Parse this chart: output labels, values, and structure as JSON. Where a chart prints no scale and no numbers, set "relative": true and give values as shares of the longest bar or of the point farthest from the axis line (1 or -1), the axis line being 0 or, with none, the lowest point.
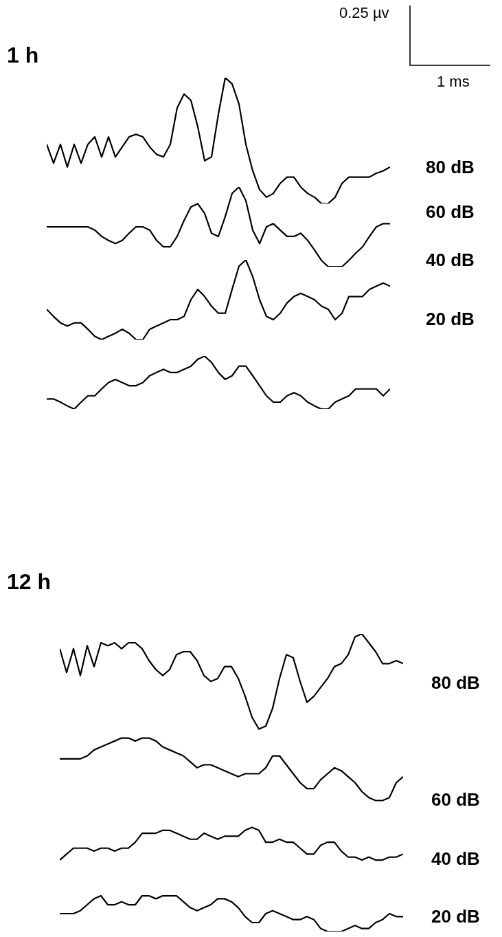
{
  "chart_data": [
    {
      "type": "line",
      "title": "1 h",
      "relative": true,
      "annotations": [
        "0.25 µv",
        "1 ms"
      ],
      "categories": [
        null,
        null,
        null,
        null,
        null,
        null,
        null,
        null,
        null,
        null,
        null,
        null,
        null,
        null,
        null,
        null,
        null,
        null,
        null,
        null,
        null,
        null,
        null,
        null,
        null,
        null,
        null,
        null,
        null,
        null,
        null,
        null,
        null,
        null,
        null,
        null,
        null,
        null,
        null,
        null,
        null,
        null,
        null,
        null,
        null,
        null,
        null,
        null,
        null,
        null,
        null
      ],
      "series": [
        {
          "name": "80 dB",
          "color": "#000000",
          "values": [
            0.47,
            0.32,
            0.47,
            0.29,
            0.47,
            0.32,
            0.47,
            0.53,
            0.37,
            0.53,
            0.37,
            0.45,
            0.53,
            0.55,
            0.53,
            0.45,
            0.39,
            0.37,
            0.47,
            0.76,
            0.87,
            0.82,
            0.61,
            0.34,
            0.37,
            0.71,
            1,
            0.95,
            0.79,
            0.47,
            0.26,
            0.11,
            0.05,
            0.08,
            0.16,
            0.21,
            0.21,
            0.13,
            0.08,
            0.05,
            0,
            0,
            0.05,
            0.16,
            0.21,
            0.21,
            0.21,
            0.21,
            0.24,
            0.26,
            0.29
          ]
        }
      ]
    },
    {
      "type": "line",
      "relative": true,
      "categories": [
        null,
        null,
        null,
        null,
        null,
        null,
        null,
        null,
        null,
        null,
        null,
        null,
        null,
        null,
        null,
        null,
        null,
        null,
        null,
        null,
        null,
        null,
        null,
        null,
        null,
        null,
        null,
        null,
        null,
        null,
        null,
        null,
        null,
        null,
        null,
        null,
        null,
        null,
        null,
        null,
        null,
        null,
        null,
        null,
        null,
        null,
        null,
        null,
        null,
        null,
        null
      ],
      "series": [
        {
          "name": "60 dB",
          "color": "#000000",
          "values": [
            0.5,
            0.5,
            0.5,
            0.5,
            0.5,
            0.5,
            0.5,
            0.46,
            0.38,
            0.33,
            0.29,
            0.33,
            0.42,
            0.5,
            0.5,
            0.46,
            0.33,
            0.25,
            0.25,
            0.38,
            0.58,
            0.75,
            0.79,
            0.67,
            0.42,
            0.38,
            0.63,
            0.92,
            1,
            0.83,
            0.46,
            0.29,
            0.5,
            0.54,
            0.46,
            0.38,
            0.38,
            0.42,
            0.33,
            0.21,
            0.08,
            0,
            0,
            0,
            0.08,
            0.17,
            0.25,
            0.38,
            0.5,
            0.54,
            0.54
          ]
        }
      ]
    },
    {
      "type": "line",
      "relative": true,
      "categories": [
        null,
        null,
        null,
        null,
        null,
        null,
        null,
        null,
        null,
        null,
        null,
        null,
        null,
        null,
        null,
        null,
        null,
        null,
        null,
        null,
        null,
        null,
        null,
        null,
        null,
        null,
        null,
        null,
        null,
        null,
        null,
        null,
        null,
        null,
        null,
        null,
        null,
        null,
        null,
        null,
        null,
        null,
        null,
        null,
        null,
        null,
        null,
        null,
        null,
        null,
        null
      ],
      "series": [
        {
          "name": "40 dB",
          "color": "#000000",
          "values": [
            0.38,
            0.29,
            0.21,
            0.17,
            0.21,
            0.21,
            0.13,
            0.04,
            0,
            0.04,
            0.08,
            0.13,
            0.08,
            0,
            0,
            0.13,
            0.17,
            0.21,
            0.25,
            0.25,
            0.29,
            0.5,
            0.63,
            0.54,
            0.42,
            0.33,
            0.33,
            0.63,
            0.92,
            1,
            0.79,
            0.5,
            0.29,
            0.25,
            0.33,
            0.46,
            0.54,
            0.58,
            0.54,
            0.5,
            0.42,
            0.38,
            0.25,
            0.33,
            0.54,
            0.54,
            0.54,
            0.63,
            0.67,
            0.71,
            0.67
          ]
        }
      ]
    },
    {
      "type": "line",
      "relative": true,
      "categories": [
        null,
        null,
        null,
        null,
        null,
        null,
        null,
        null,
        null,
        null,
        null,
        null,
        null,
        null,
        null,
        null,
        null,
        null,
        null,
        null,
        null,
        null,
        null,
        null,
        null,
        null,
        null,
        null,
        null,
        null,
        null,
        null,
        null,
        null,
        null,
        null,
        null,
        null,
        null,
        null,
        null,
        null,
        null,
        null,
        null,
        null,
        null,
        null,
        null,
        null,
        null
      ],
      "series": [
        {
          "name": "20 dB",
          "color": "#000000",
          "values": [
            0.19,
            0.19,
            0.13,
            0.06,
            0,
            0.13,
            0.25,
            0.25,
            0.38,
            0.5,
            0.56,
            0.5,
            0.44,
            0.44,
            0.5,
            0.63,
            0.69,
            0.75,
            0.69,
            0.69,
            0.75,
            0.81,
            0.94,
            1,
            0.88,
            0.69,
            0.56,
            0.63,
            0.81,
            0.81,
            0.63,
            0.44,
            0.25,
            0.13,
            0.13,
            0.25,
            0.31,
            0.25,
            0.13,
            0.06,
            0,
            0,
            0.13,
            0.19,
            0.25,
            0.38,
            0.38,
            0.38,
            0.38,
            0.25,
            0.38
          ]
        }
      ]
    },
    {
      "type": "line",
      "title": "12 h",
      "relative": true,
      "categories": [
        null,
        null,
        null,
        null,
        null,
        null,
        null,
        null,
        null,
        null,
        null,
        null,
        null,
        null,
        null,
        null,
        null,
        null,
        null,
        null,
        null,
        null,
        null,
        null,
        null,
        null,
        null,
        null,
        null,
        null,
        null,
        null,
        null,
        null,
        null,
        null,
        null,
        null,
        null,
        null,
        null,
        null,
        null,
        null,
        null,
        null,
        null,
        null,
        null,
        null,
        null
      ],
      "series": [
        {
          "name": "80 dB",
          "color": "#000000",
          "values": [
            0.95,
            0.87,
            0.95,
            0.86,
            0.96,
            0.89,
            0.97,
            0.96,
            0.97,
            0.95,
            0.97,
            0.97,
            0.95,
            0.91,
            0.88,
            0.86,
            0.88,
            0.93,
            0.94,
            0.94,
            0.91,
            0.86,
            0.84,
            0.85,
            0.89,
            0.89,
            0.85,
            0.79,
            0.72,
            0.68,
            0.69,
            0.75,
            0.85,
            0.93,
            0.92,
            0.84,
            0.77,
            0.79,
            0.82,
            0.85,
            0.89,
            0.9,
            0.93,
            0.99,
            1.0,
            0.97,
            0.94,
            0.9,
            0.9,
            0.91,
            0.9
          ]
        },
        {
          "name": "60 dB",
          "color": "#000000",
          "values": [
            0.58,
            0.58,
            0.58,
            0.58,
            0.59,
            0.61,
            0.62,
            0.63,
            0.64,
            0.65,
            0.65,
            0.64,
            0.65,
            0.65,
            0.64,
            0.62,
            0.61,
            0.6,
            0.59,
            0.57,
            0.55,
            0.56,
            0.56,
            0.55,
            0.54,
            0.53,
            0.52,
            0.53,
            0.53,
            0.53,
            0.55,
            0.59,
            0.59,
            0.56,
            0.53,
            0.5,
            0.48,
            0.48,
            0.51,
            0.53,
            0.55,
            0.54,
            0.52,
            0.5,
            0.47,
            0.45,
            0.44,
            0.44,
            0.45,
            0.5,
            0.52
          ]
        },
        {
          "name": "40 dB",
          "color": "#000000",
          "values": [
            0.24,
            0.26,
            0.28,
            0.28,
            0.28,
            0.27,
            0.28,
            0.28,
            0.27,
            0.28,
            0.28,
            0.3,
            0.33,
            0.33,
            0.33,
            0.34,
            0.34,
            0.33,
            0.32,
            0.31,
            0.31,
            0.33,
            0.32,
            0.31,
            0.32,
            0.32,
            0.32,
            0.34,
            0.35,
            0.34,
            0.3,
            0.3,
            0.31,
            0.3,
            0.3,
            0.28,
            0.26,
            0.26,
            0.29,
            0.3,
            0.3,
            0.27,
            0.25,
            0.25,
            0.24,
            0.25,
            0.24,
            0.24,
            0.25,
            0.25,
            0.26
          ]
        },
        {
          "name": "20 dB",
          "color": "#000000",
          "values": [
            0.06,
            0.06,
            0.06,
            0.07,
            0.09,
            0.11,
            0.12,
            0.09,
            0.09,
            0.1,
            0.09,
            0.09,
            0.12,
            0.12,
            0.11,
            0.12,
            0.12,
            0.12,
            0.1,
            0.08,
            0.07,
            0.08,
            0.09,
            0.11,
            0.11,
            0.1,
            0.08,
            0.05,
            0.03,
            0.03,
            0.06,
            0.07,
            0.06,
            0.05,
            0.04,
            0.04,
            0.05,
            0.04,
            0.01,
            0.0,
            0.0,
            0.0,
            0.01,
            0.02,
            0.01,
            0.01,
            0.03,
            0.04,
            0.06,
            0.05,
            0.05
          ]
        }
      ]
    }
  ]
}
